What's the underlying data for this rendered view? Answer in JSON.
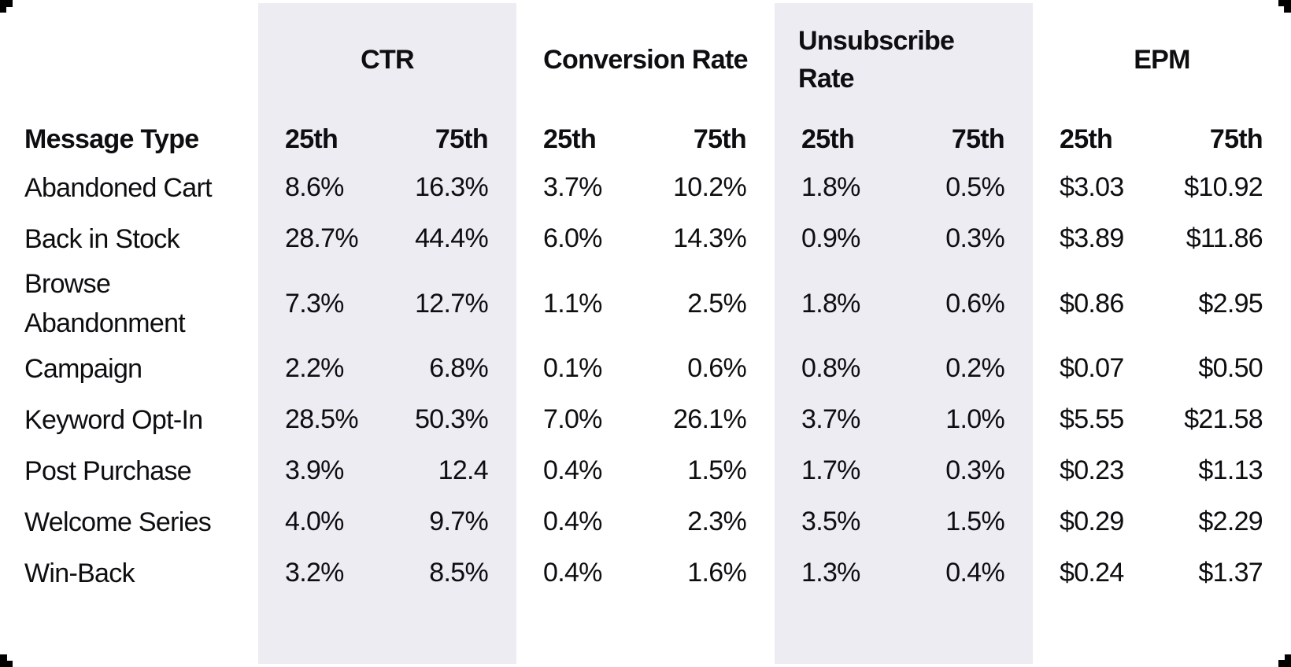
{
  "theme": {
    "background": "#ffffff",
    "band_color": "#edecf3",
    "text_color": "#0e0e11",
    "corner_mark_color": "#000000"
  },
  "chart_data": {
    "type": "table",
    "row_header": "Message Type",
    "column_groups": [
      "CTR",
      "Conversion Rate",
      "Unsubscribe Rate",
      "EPM"
    ],
    "percentile_labels": [
      "25th",
      "75th"
    ],
    "columns": [
      "Message Type",
      "CTR 25th",
      "CTR 75th",
      "Conversion Rate 25th",
      "Conversion Rate 75th",
      "Unsubscribe Rate 25th",
      "Unsubscribe Rate 75th",
      "EPM 25th",
      "EPM 75th"
    ],
    "rows": [
      {
        "label": "Abandoned Cart",
        "values": [
          "8.6%",
          "16.3%",
          "3.7%",
          "10.2%",
          "1.8%",
          "0.5%",
          "$3.03",
          "$10.92"
        ]
      },
      {
        "label": "Back in Stock",
        "values": [
          "28.7%",
          "44.4%",
          "6.0%",
          "14.3%",
          "0.9%",
          "0.3%",
          "$3.89",
          "$11.86"
        ]
      },
      {
        "label": "Browse Abandonment",
        "values": [
          "7.3%",
          "12.7%",
          "1.1%",
          "2.5%",
          "1.8%",
          "0.6%",
          "$0.86",
          "$2.95"
        ]
      },
      {
        "label": "Campaign",
        "values": [
          "2.2%",
          "6.8%",
          "0.1%",
          "0.6%",
          "0.8%",
          "0.2%",
          "$0.07",
          "$0.50"
        ]
      },
      {
        "label": "Keyword Opt-In",
        "values": [
          "28.5%",
          "50.3%",
          "7.0%",
          "26.1%",
          "3.7%",
          "1.0%",
          "$5.55",
          "$21.58"
        ]
      },
      {
        "label": "Post Purchase",
        "values": [
          "3.9%",
          "12.4",
          "0.4%",
          "1.5%",
          "1.7%",
          "0.3%",
          "$0.23",
          "$1.13"
        ]
      },
      {
        "label": "Welcome Series",
        "values": [
          "4.0%",
          "9.7%",
          "0.4%",
          "2.3%",
          "3.5%",
          "1.5%",
          "$0.29",
          "$2.29"
        ]
      },
      {
        "label": "Win-Back",
        "values": [
          "3.2%",
          "8.5%",
          "0.4%",
          "1.6%",
          "1.3%",
          "0.4%",
          "$0.24",
          "$1.37"
        ]
      }
    ]
  }
}
